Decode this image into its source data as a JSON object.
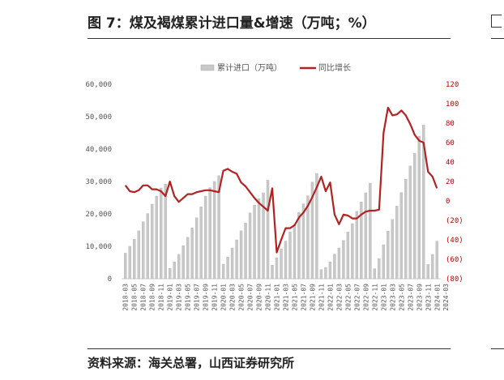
{
  "header": {
    "title": "图 7：煤及褐煤累计进口量&增速（万吨；%）"
  },
  "footer": {
    "source": "资料来源：海关总署，山西证券研究所"
  },
  "chart_data": {
    "type": "bar+line",
    "legend_position": "top-center",
    "grid": false,
    "series": [
      {
        "name": "累计进口（万吨）",
        "type": "bar",
        "axis": "left",
        "color": "#c8c8c8",
        "values": [
          7900,
          10000,
          12200,
          14800,
          17600,
          20100,
          23000,
          25500,
          28000,
          29200,
          3200,
          5200,
          7500,
          10200,
          12800,
          15700,
          18800,
          22200,
          25500,
          28100,
          30000,
          31800,
          4500,
          6700,
          9500,
          12000,
          14800,
          17200,
          20300,
          22700,
          24700,
          26500,
          30400,
          4200,
          6500,
          9200,
          11600,
          14400,
          16800,
          20500,
          23100,
          25600,
          29800,
          32500,
          2800,
          3500,
          5200,
          7600,
          9500,
          11800,
          14400,
          17000,
          20800,
          23700,
          26500,
          29500,
          3100,
          6200,
          10500,
          14700,
          18300,
          22400,
          26600,
          30700,
          34800,
          38700,
          44000,
          47400,
          4400,
          7500,
          11600
        ]
      },
      {
        "name": "同比增长",
        "type": "line",
        "axis": "right",
        "color": "#b22222",
        "values": [
          16,
          10,
          9,
          11,
          16,
          16,
          12,
          12,
          10,
          5,
          20,
          5,
          -1,
          3,
          7,
          7,
          9,
          10,
          11,
          11,
          10,
          9,
          31,
          33,
          30,
          28,
          19,
          15,
          9,
          3,
          -2,
          -6,
          -10,
          13,
          -53,
          -40,
          -28,
          -28,
          -25,
          -17,
          -12,
          -5,
          4,
          14,
          25,
          10,
          19,
          -14,
          -24,
          -14,
          -15,
          -18,
          -18,
          -14,
          -11,
          -10,
          -10,
          -9,
          70,
          96,
          88,
          89,
          93,
          88,
          79,
          68,
          62,
          60,
          30,
          25,
          13
        ]
      }
    ],
    "x_labels": [
      "2018-03",
      "2018-05",
      "2018-07",
      "2018-09",
      "2018-11",
      "2019-01",
      "2019-03",
      "2019-05",
      "2019-07",
      "2019-09",
      "2019-11",
      "2020-01",
      "2020-03",
      "2020-05",
      "2020-07",
      "2020-09",
      "2020-11",
      "2021-01",
      "2021-03",
      "2021-05",
      "2021-07",
      "2021-09",
      "2021-11",
      "2022-01",
      "2022-03",
      "2022-05",
      "2022-07",
      "2022-09",
      "2022-11",
      "2023-01",
      "2023-03",
      "2023-05",
      "2023-07",
      "2023-09",
      "2023-11",
      "2024-01",
      "2024-03"
    ],
    "left_axis": {
      "min": 0,
      "max": 60000,
      "ticks": [
        "0",
        "10,000",
        "20,000",
        "30,000",
        "40,000",
        "50,000",
        "60,000"
      ]
    },
    "right_axis": {
      "min": -80,
      "max": 120,
      "ticks": [
        "(80)",
        "(60)",
        "(40)",
        "(20)",
        "0",
        "20",
        "40",
        "60",
        "80",
        "100",
        "120"
      ]
    }
  }
}
